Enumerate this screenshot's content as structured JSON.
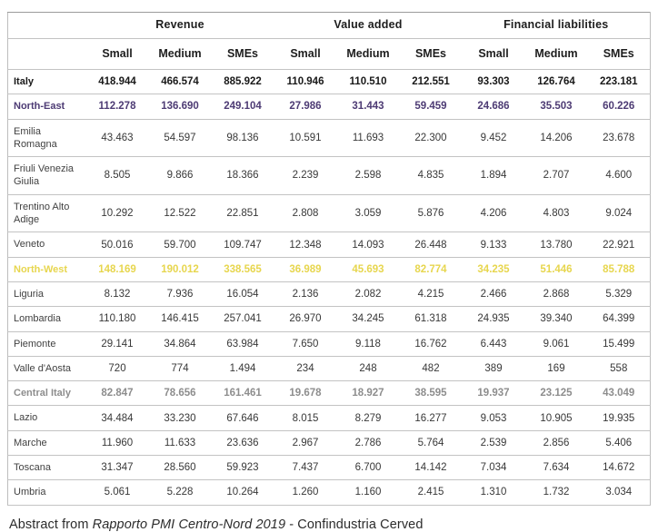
{
  "table": {
    "groups": [
      {
        "label": "Revenue",
        "span": 3
      },
      {
        "label": "Value added",
        "span": 3
      },
      {
        "label": "Financial liabilities",
        "span": 3
      }
    ],
    "subheaders": [
      "Small",
      "Medium",
      "SMEs",
      "Small",
      "Medium",
      "SMEs",
      "Small",
      "Medium",
      "SMEs"
    ],
    "rows": [
      {
        "label": "Italy",
        "style": "country",
        "values": [
          "418.944",
          "466.574",
          "885.922",
          "110.946",
          "110.510",
          "212.551",
          "93.303",
          "126.764",
          "223.181"
        ]
      },
      {
        "label": "North-East",
        "style": "northeast",
        "values": [
          "112.278",
          "136.690",
          "249.104",
          "27.986",
          "31.443",
          "59.459",
          "24.686",
          "35.503",
          "60.226"
        ]
      },
      {
        "label": "Emilia Romagna",
        "style": "region",
        "values": [
          "43.463",
          "54.597",
          "98.136",
          "10.591",
          "11.693",
          "22.300",
          "9.452",
          "14.206",
          "23.678"
        ]
      },
      {
        "label": "Friuli Venezia Giulia",
        "style": "region",
        "values": [
          "8.505",
          "9.866",
          "18.366",
          "2.239",
          "2.598",
          "4.835",
          "1.894",
          "2.707",
          "4.600"
        ]
      },
      {
        "label": "Trentino Alto Adige",
        "style": "region",
        "values": [
          "10.292",
          "12.522",
          "22.851",
          "2.808",
          "3.059",
          "5.876",
          "4.206",
          "4.803",
          "9.024"
        ]
      },
      {
        "label": "Veneto",
        "style": "region",
        "values": [
          "50.016",
          "59.700",
          "109.747",
          "12.348",
          "14.093",
          "26.448",
          "9.133",
          "13.780",
          "22.921"
        ]
      },
      {
        "label": "North-West",
        "style": "northwest",
        "values": [
          "148.169",
          "190.012",
          "338.565",
          "36.989",
          "45.693",
          "82.774",
          "34.235",
          "51.446",
          "85.788"
        ]
      },
      {
        "label": "Liguria",
        "style": "region",
        "values": [
          "8.132",
          "7.936",
          "16.054",
          "2.136",
          "2.082",
          "4.215",
          "2.466",
          "2.868",
          "5.329"
        ]
      },
      {
        "label": "Lombardia",
        "style": "region",
        "values": [
          "110.180",
          "146.415",
          "257.041",
          "26.970",
          "34.245",
          "61.318",
          "24.935",
          "39.340",
          "64.399"
        ]
      },
      {
        "label": "Piemonte",
        "style": "region",
        "values": [
          "29.141",
          "34.864",
          "63.984",
          "7.650",
          "9.118",
          "16.762",
          "6.443",
          "9.061",
          "15.499"
        ]
      },
      {
        "label": "Valle d'Aosta",
        "style": "region",
        "values": [
          "720",
          "774",
          "1.494",
          "234",
          "248",
          "482",
          "389",
          "169",
          "558"
        ]
      },
      {
        "label": "Central Italy",
        "style": "central",
        "values": [
          "82.847",
          "78.656",
          "161.461",
          "19.678",
          "18.927",
          "38.595",
          "19.937",
          "23.125",
          "43.049"
        ]
      },
      {
        "label": "Lazio",
        "style": "region",
        "values": [
          "34.484",
          "33.230",
          "67.646",
          "8.015",
          "8.279",
          "16.277",
          "9.053",
          "10.905",
          "19.935"
        ]
      },
      {
        "label": "Marche",
        "style": "region",
        "values": [
          "11.960",
          "11.633",
          "23.636",
          "2.967",
          "2.786",
          "5.764",
          "2.539",
          "2.856",
          "5.406"
        ]
      },
      {
        "label": "Toscana",
        "style": "region",
        "values": [
          "31.347",
          "28.560",
          "59.923",
          "7.437",
          "6.700",
          "14.142",
          "7.034",
          "7.634",
          "14.672"
        ]
      },
      {
        "label": "Umbria",
        "style": "region",
        "values": [
          "5.061",
          "5.228",
          "10.264",
          "1.260",
          "1.160",
          "2.415",
          "1.310",
          "1.732",
          "3.034"
        ]
      }
    ]
  },
  "footer": {
    "prefix": "Abstract from ",
    "source_italic": "Rapporto PMI Centro-Nord 2019",
    "suffix": " - Confindustria Cerved"
  },
  "colors": {
    "northeast": "#4d3b74",
    "northwest": "#e7d64e",
    "central": "#8d8d8d"
  }
}
